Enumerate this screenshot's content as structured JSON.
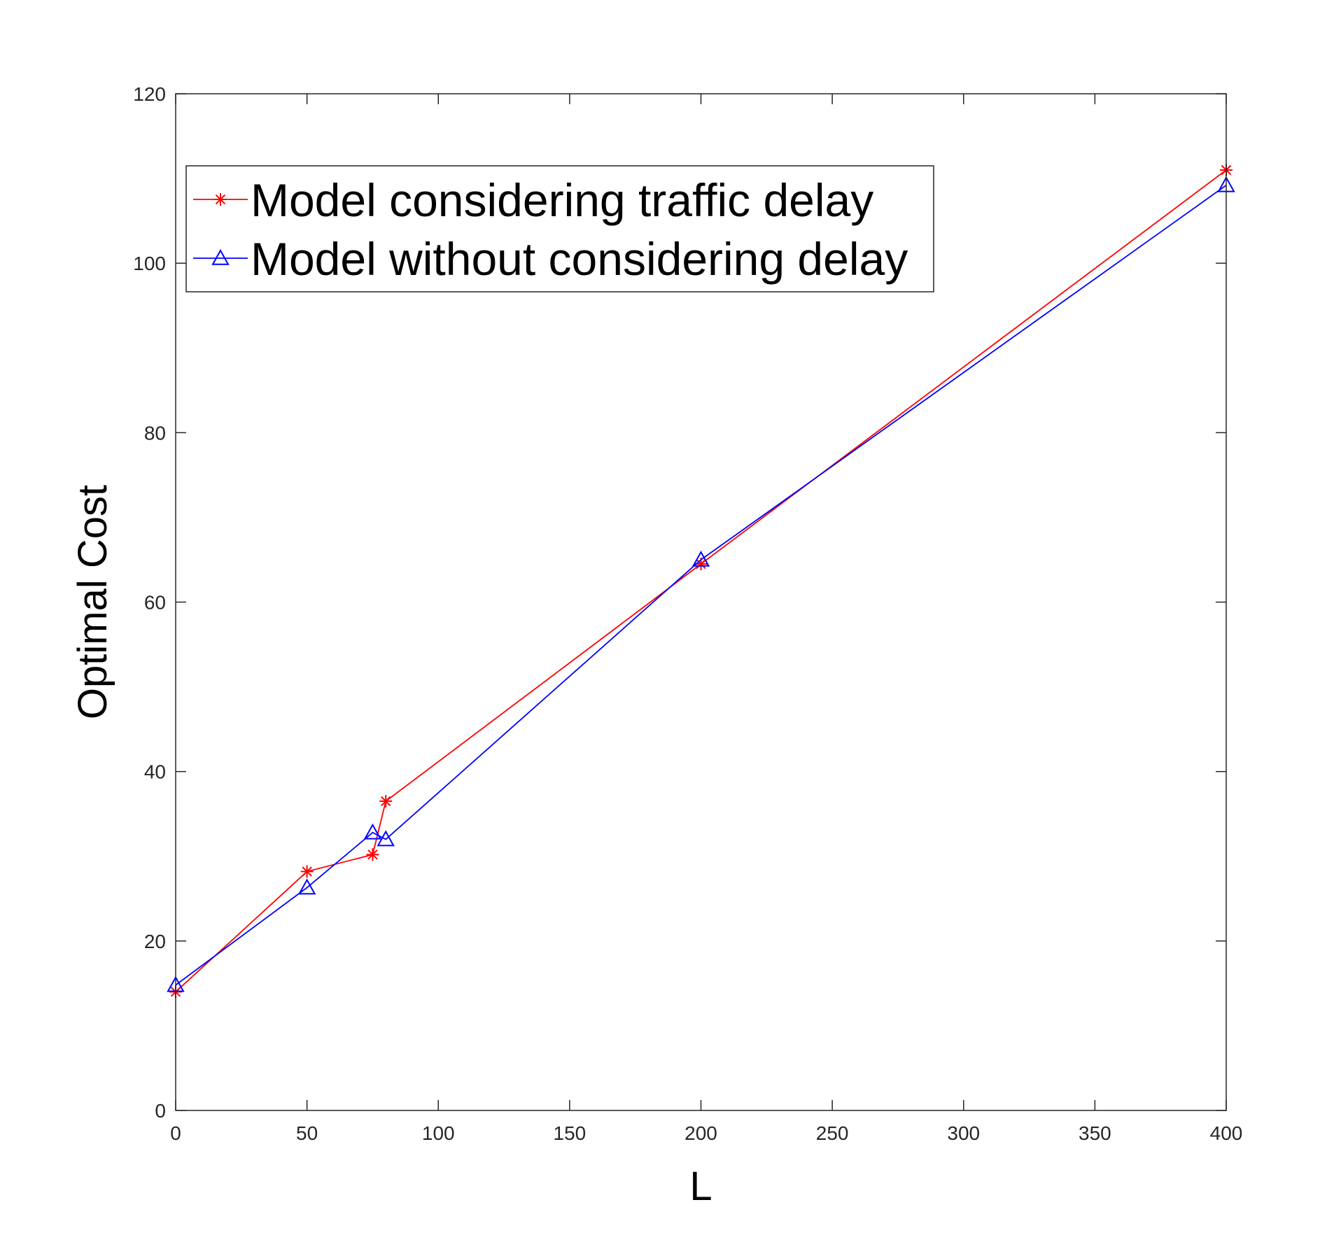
{
  "chart_data": {
    "type": "line",
    "title": "",
    "xlabel": "L",
    "ylabel": "Optimal Cost",
    "xlim": [
      0,
      400
    ],
    "ylim": [
      0,
      120
    ],
    "xticks": [
      0,
      50,
      100,
      150,
      200,
      250,
      300,
      350,
      400
    ],
    "yticks": [
      0,
      20,
      40,
      60,
      80,
      100,
      120
    ],
    "grid": false,
    "legend_position": "top-left",
    "series": [
      {
        "name": "Model considering traffic delay",
        "color": "#ff0000",
        "marker": "asterisk",
        "x": [
          0,
          50,
          75,
          80,
          200,
          400
        ],
        "y": [
          14,
          28.2,
          30.2,
          36.5,
          64.5,
          111
        ]
      },
      {
        "name": "Model without considering delay",
        "color": "#0000ff",
        "marker": "triangle",
        "x": [
          0,
          50,
          75,
          80,
          200,
          400
        ],
        "y": [
          14.8,
          26.3,
          32.8,
          32.0,
          65.0,
          109.2
        ]
      }
    ]
  }
}
